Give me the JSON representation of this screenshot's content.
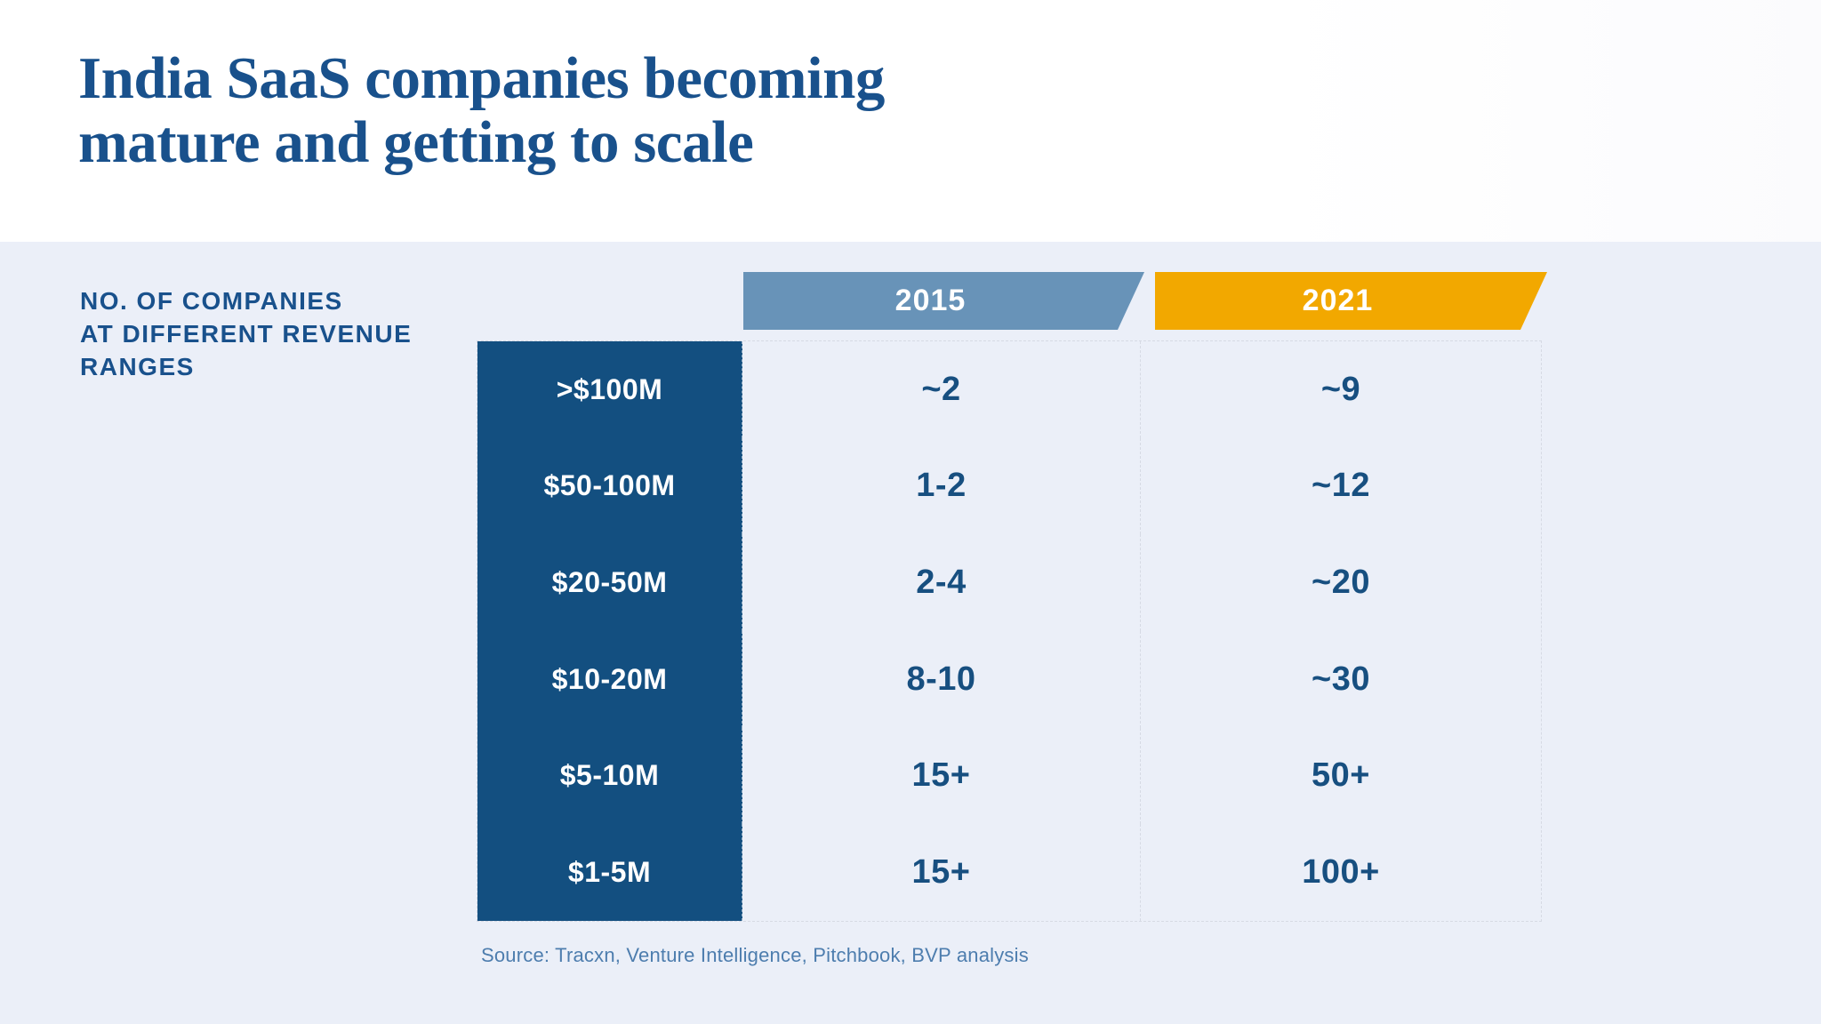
{
  "title": {
    "line1": "India SaaS companies becoming",
    "line2": "mature and getting to scale"
  },
  "side_label": {
    "line1": "NO. OF COMPANIES",
    "line2": "AT DIFFERENT REVENUE",
    "line3": "RANGES"
  },
  "table": {
    "header_2015": "2015",
    "header_2021": "2021",
    "rows": [
      {
        "label": ">$100M",
        "v2015": "~2",
        "v2021": "~9"
      },
      {
        "label": "$50-100M",
        "v2015": "1-2",
        "v2021": "~12"
      },
      {
        "label": "$20-50M",
        "v2015": "2-4",
        "v2021": "~20"
      },
      {
        "label": "$10-20M",
        "v2015": "8-10",
        "v2021": "~30"
      },
      {
        "label": "$5-10M",
        "v2015": "15+",
        "v2021": "50+"
      },
      {
        "label": "$1-5M",
        "v2015": "15+",
        "v2021": "100+"
      }
    ]
  },
  "source": "Source: Tracxn, Venture Intelligence, Pitchbook, BVP analysis",
  "colors": {
    "page_background": "#ebeff8",
    "title_band": "#ffffff",
    "title_text": "#19518c",
    "label_cell_navy": "#134f80",
    "value_text_navy": "#174f80",
    "chip_2015_blue": "#6893b8",
    "chip_2021_amber": "#f2a800",
    "row_white": "#fcfdff",
    "row_light": "#edf2f8",
    "source_text": "#4d7dae"
  },
  "chart_data": {
    "type": "table",
    "title": "India SaaS companies becoming mature and getting to scale",
    "ylabel": "No. of companies at different revenue ranges",
    "categories": [
      ">$100M",
      "$50-100M",
      "$20-50M",
      "$10-20M",
      "$5-10M",
      "$1-5M"
    ],
    "series": [
      {
        "name": "2015",
        "values": [
          "~2",
          "1-2",
          "2-4",
          "8-10",
          "15+",
          "15+"
        ]
      },
      {
        "name": "2021",
        "values": [
          "~9",
          "~12",
          "~20",
          "~30",
          "50+",
          "100+"
        ]
      }
    ],
    "source": "Source: Tracxn, Venture Intelligence, Pitchbook, BVP analysis",
    "layout": "revenue ranges as rows (high to low), one column per year, values are approximate company counts"
  }
}
